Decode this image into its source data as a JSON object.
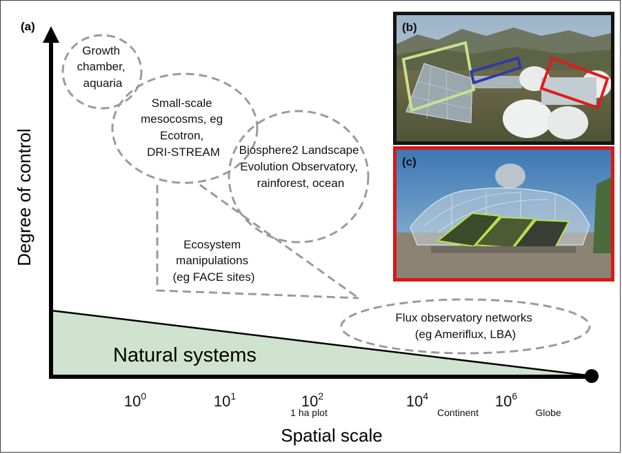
{
  "panel_labels": {
    "a": "(a)",
    "b": "(b)",
    "c": "(c)"
  },
  "axes": {
    "y_label": "Degree of control",
    "x_label": "Spatial scale",
    "ticks": [
      {
        "base": "10",
        "exp": "0",
        "note": ""
      },
      {
        "base": "10",
        "exp": "1",
        "note": ""
      },
      {
        "base": "10",
        "exp": "2",
        "note": "1 ha plot"
      },
      {
        "base": "10",
        "exp": "4",
        "note": "Continent"
      },
      {
        "base": "10",
        "exp": "6",
        "note": ""
      }
    ],
    "globe_label": "Globe"
  },
  "regions": {
    "natural_systems": "Natural systems",
    "growth_chamber": [
      "Growth",
      "chamber,",
      "aquaria"
    ],
    "mesocosms": [
      "Small-scale",
      "mesocosms, eg",
      "Ecotron,",
      "DRI-STREAM"
    ],
    "biosphere2": [
      "Biosphere2 Landscape",
      "Evolution Observatory,",
      "rainforest, ocean"
    ],
    "ecosystem_manipulations": [
      "Ecosystem",
      "manipulations",
      "(eg FACE sites)"
    ],
    "flux_networks": [
      "Flux observatory networks",
      "(eg Ameriflux, LBA)"
    ]
  },
  "colors": {
    "natural_fill": "#cfe3cf",
    "dashed": "#9a9a9a",
    "box_green": "#c6e28f",
    "box_blue": "#2f3aa8",
    "box_red": "#e01b1b",
    "panel_c_border": "#d61a1a"
  }
}
